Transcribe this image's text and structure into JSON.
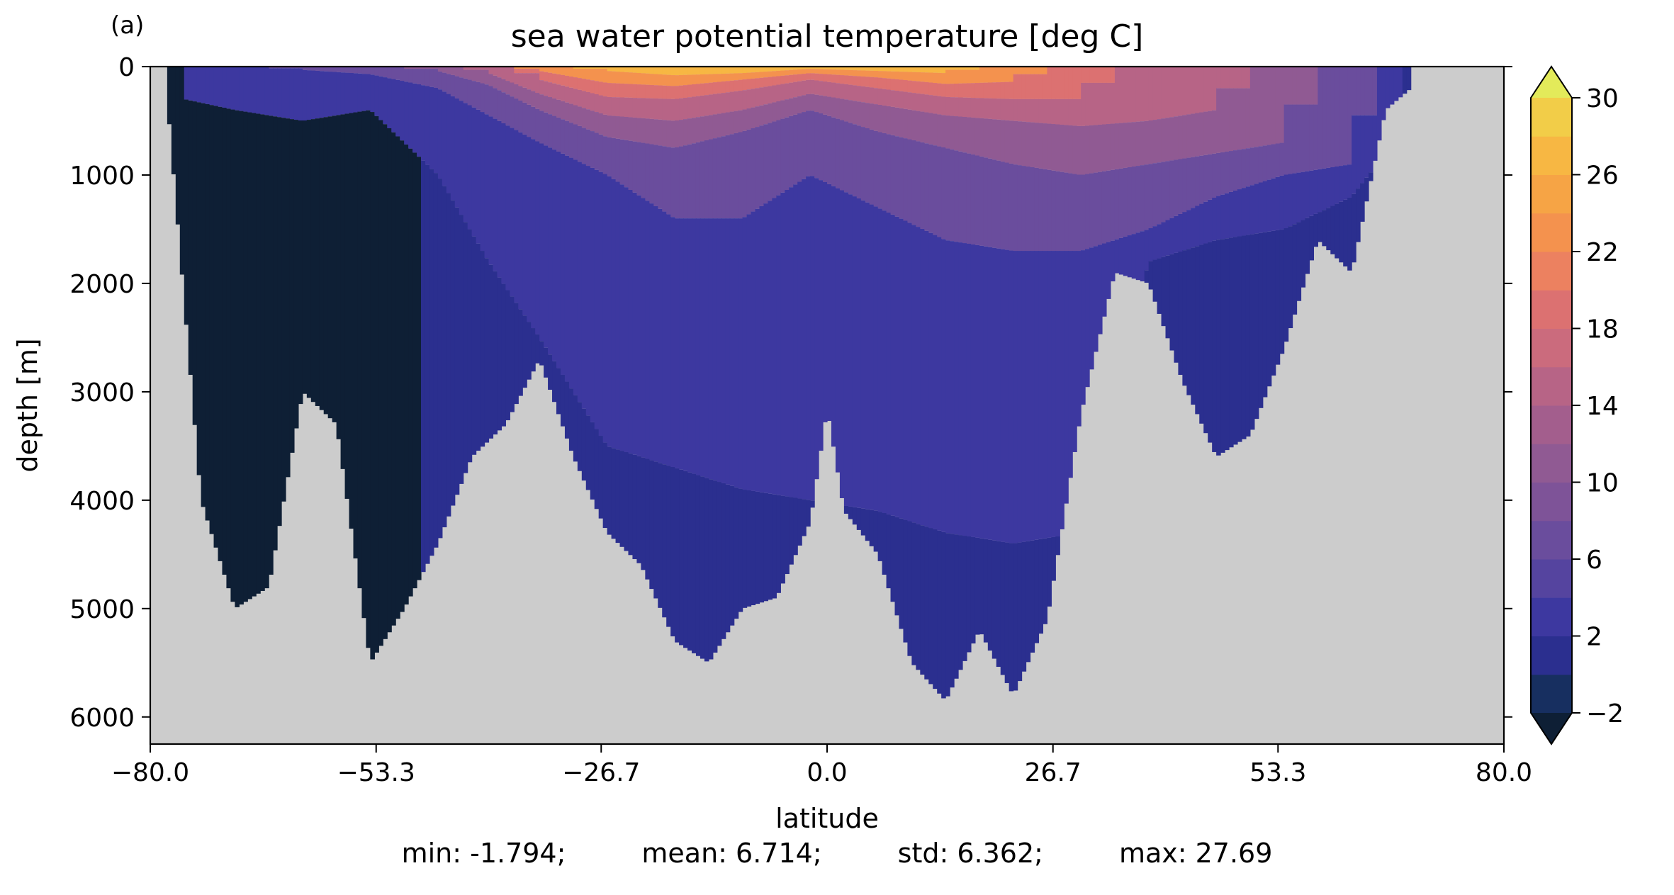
{
  "panel_label": "(a)",
  "stats": {
    "min": "min: -1.794;",
    "mean": "mean: 6.714;",
    "std": "std: 6.362;",
    "max": "max: 27.69"
  },
  "chart_data": {
    "type": "heatmap",
    "title": "sea water potential temperature [deg C]",
    "xlabel": "latitude",
    "ylabel": "depth [m]",
    "xlim": [
      -80,
      80
    ],
    "ylim": [
      6250,
      0
    ],
    "y_inverted": true,
    "x_ticks": [
      -80.0,
      -53.3,
      -26.7,
      0.0,
      26.7,
      53.3,
      80.0
    ],
    "x_tick_labels": [
      "−80.0",
      "−53.3",
      "−26.7",
      "0.0",
      "26.7",
      "53.3",
      "80.0"
    ],
    "y_ticks": [
      0,
      1000,
      2000,
      3000,
      4000,
      5000,
      6000
    ],
    "y_tick_labels": [
      "0",
      "1000",
      "2000",
      "3000",
      "4000",
      "5000",
      "6000"
    ],
    "land_color": "#cccccc",
    "colorbar": {
      "levels": [
        -2,
        0,
        2,
        4,
        6,
        8,
        10,
        12,
        14,
        16,
        18,
        20,
        22,
        24,
        26,
        28,
        30
      ],
      "tick_values": [
        -2,
        2,
        6,
        10,
        14,
        18,
        22,
        26,
        30
      ],
      "tick_labels": [
        "−2",
        "2",
        "6",
        "10",
        "14",
        "18",
        "22",
        "26",
        "30"
      ],
      "extend": "both",
      "colors": [
        "#172f60",
        "#2b2f8f",
        "#3d38a0",
        "#55449f",
        "#6a4d9d",
        "#7e5398",
        "#905a93",
        "#a35e8d",
        "#b76486",
        "#cb6b7d",
        "#dc7171",
        "#ec8160",
        "#f4924e",
        "#f6a445",
        "#f7b743",
        "#f2cd48"
      ],
      "under_color": "#0e1f35",
      "over_color": "#e3ea5a"
    },
    "seafloor_depth": {
      "lat": [
        -78,
        -74,
        -70,
        -66,
        -62,
        -58,
        -54,
        -50,
        -46,
        -42,
        -38,
        -34,
        -30,
        -26,
        -22,
        -18,
        -14,
        -10,
        -6,
        -2,
        0,
        2,
        6,
        10,
        14,
        18,
        22,
        26,
        30,
        34,
        38,
        42,
        46,
        50,
        54,
        58,
        62,
        66,
        69
      ],
      "depth": [
        300,
        4000,
        5000,
        4800,
        3000,
        3300,
        5500,
        5000,
        4400,
        3600,
        3300,
        2700,
        3600,
        4300,
        4600,
        5300,
        5500,
        5000,
        4900,
        4200,
        3150,
        4100,
        4500,
        5500,
        5850,
        5200,
        5800,
        5100,
        3200,
        1900,
        2000,
        2900,
        3600,
        3400,
        2600,
        1600,
        1900,
        400,
        200
      ]
    },
    "isotherm_depths": {
      "note_levels_degC": [
        2,
        6,
        10,
        14,
        18,
        22,
        26
      ],
      "lat": [
        -76,
        -70,
        -62,
        -54,
        -46,
        -40,
        -34,
        -26,
        -18,
        -10,
        -2,
        6,
        14,
        22,
        30,
        38,
        46,
        54,
        62,
        68
      ],
      "iso_2": [
        300,
        400,
        500,
        400,
        1000,
        1800,
        2500,
        3500,
        3700,
        3900,
        4000,
        4100,
        4300,
        4400,
        4300,
        1800,
        1600,
        1500,
        1200,
        600
      ],
      "iso_6": [
        null,
        null,
        30,
        70,
        200,
        450,
        700,
        1000,
        1400,
        1400,
        1000,
        1300,
        1600,
        1700,
        1700,
        1500,
        1200,
        1000,
        900,
        null
      ],
      "iso_10": [
        null,
        null,
        null,
        null,
        40,
        170,
        400,
        650,
        750,
        600,
        400,
        600,
        750,
        900,
        1000,
        900,
        800,
        700,
        null,
        null
      ],
      "iso_14": [
        null,
        null,
        null,
        null,
        null,
        60,
        250,
        450,
        500,
        400,
        250,
        350,
        450,
        500,
        550,
        500,
        400,
        null,
        null,
        null
      ],
      "iso_18": [
        null,
        null,
        null,
        null,
        null,
        null,
        120,
        280,
        300,
        220,
        120,
        200,
        280,
        300,
        300,
        null,
        null,
        null,
        null,
        null
      ],
      "iso_22": [
        null,
        null,
        null,
        null,
        null,
        null,
        40,
        150,
        180,
        120,
        60,
        100,
        160,
        140,
        null,
        null,
        null,
        null,
        null,
        null
      ],
      "iso_26": [
        null,
        null,
        null,
        null,
        null,
        null,
        null,
        40,
        80,
        60,
        20,
        40,
        60,
        null,
        null,
        null,
        null,
        null,
        null,
        null
      ]
    },
    "deep_cold_region": "temperatures below 0 deg C fill the Southern Ocean deep water between about -78 and -48 latitude"
  }
}
